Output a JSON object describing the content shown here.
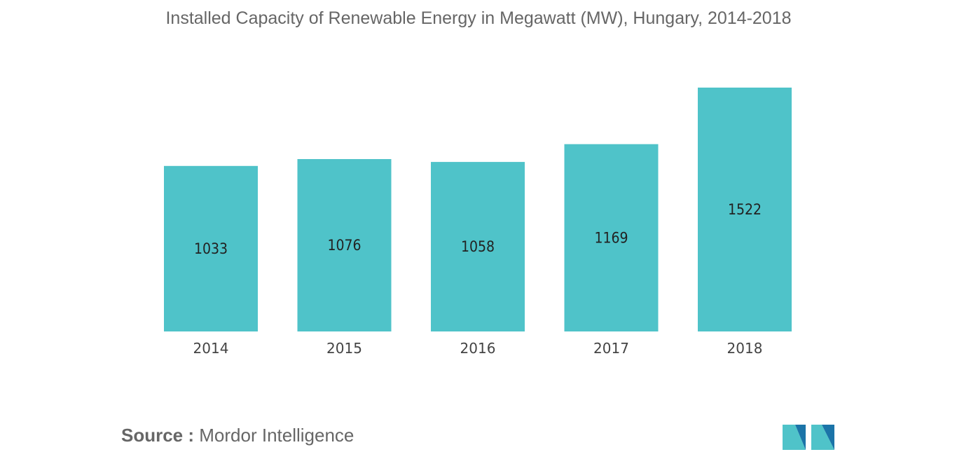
{
  "chart_data": {
    "type": "bar",
    "title": "Installed Capacity of Renewable Energy in Megawatt (MW), Hungary, 2014-2018",
    "xlabel": "",
    "ylabel": "",
    "categories": [
      "2014",
      "2015",
      "2016",
      "2017",
      "2018"
    ],
    "values": [
      1033,
      1076,
      1058,
      1169,
      1522
    ],
    "ylim": [
      0,
      1522
    ],
    "grid": false,
    "bar_color": "#4fc3c9"
  },
  "footer": {
    "source_prefix": "Source :",
    "source_text": "Mordor Intelligence"
  },
  "logo": {
    "icon": "mordor-intelligence-logo",
    "colors": [
      "#1b74a8",
      "#4fc3c9"
    ]
  }
}
